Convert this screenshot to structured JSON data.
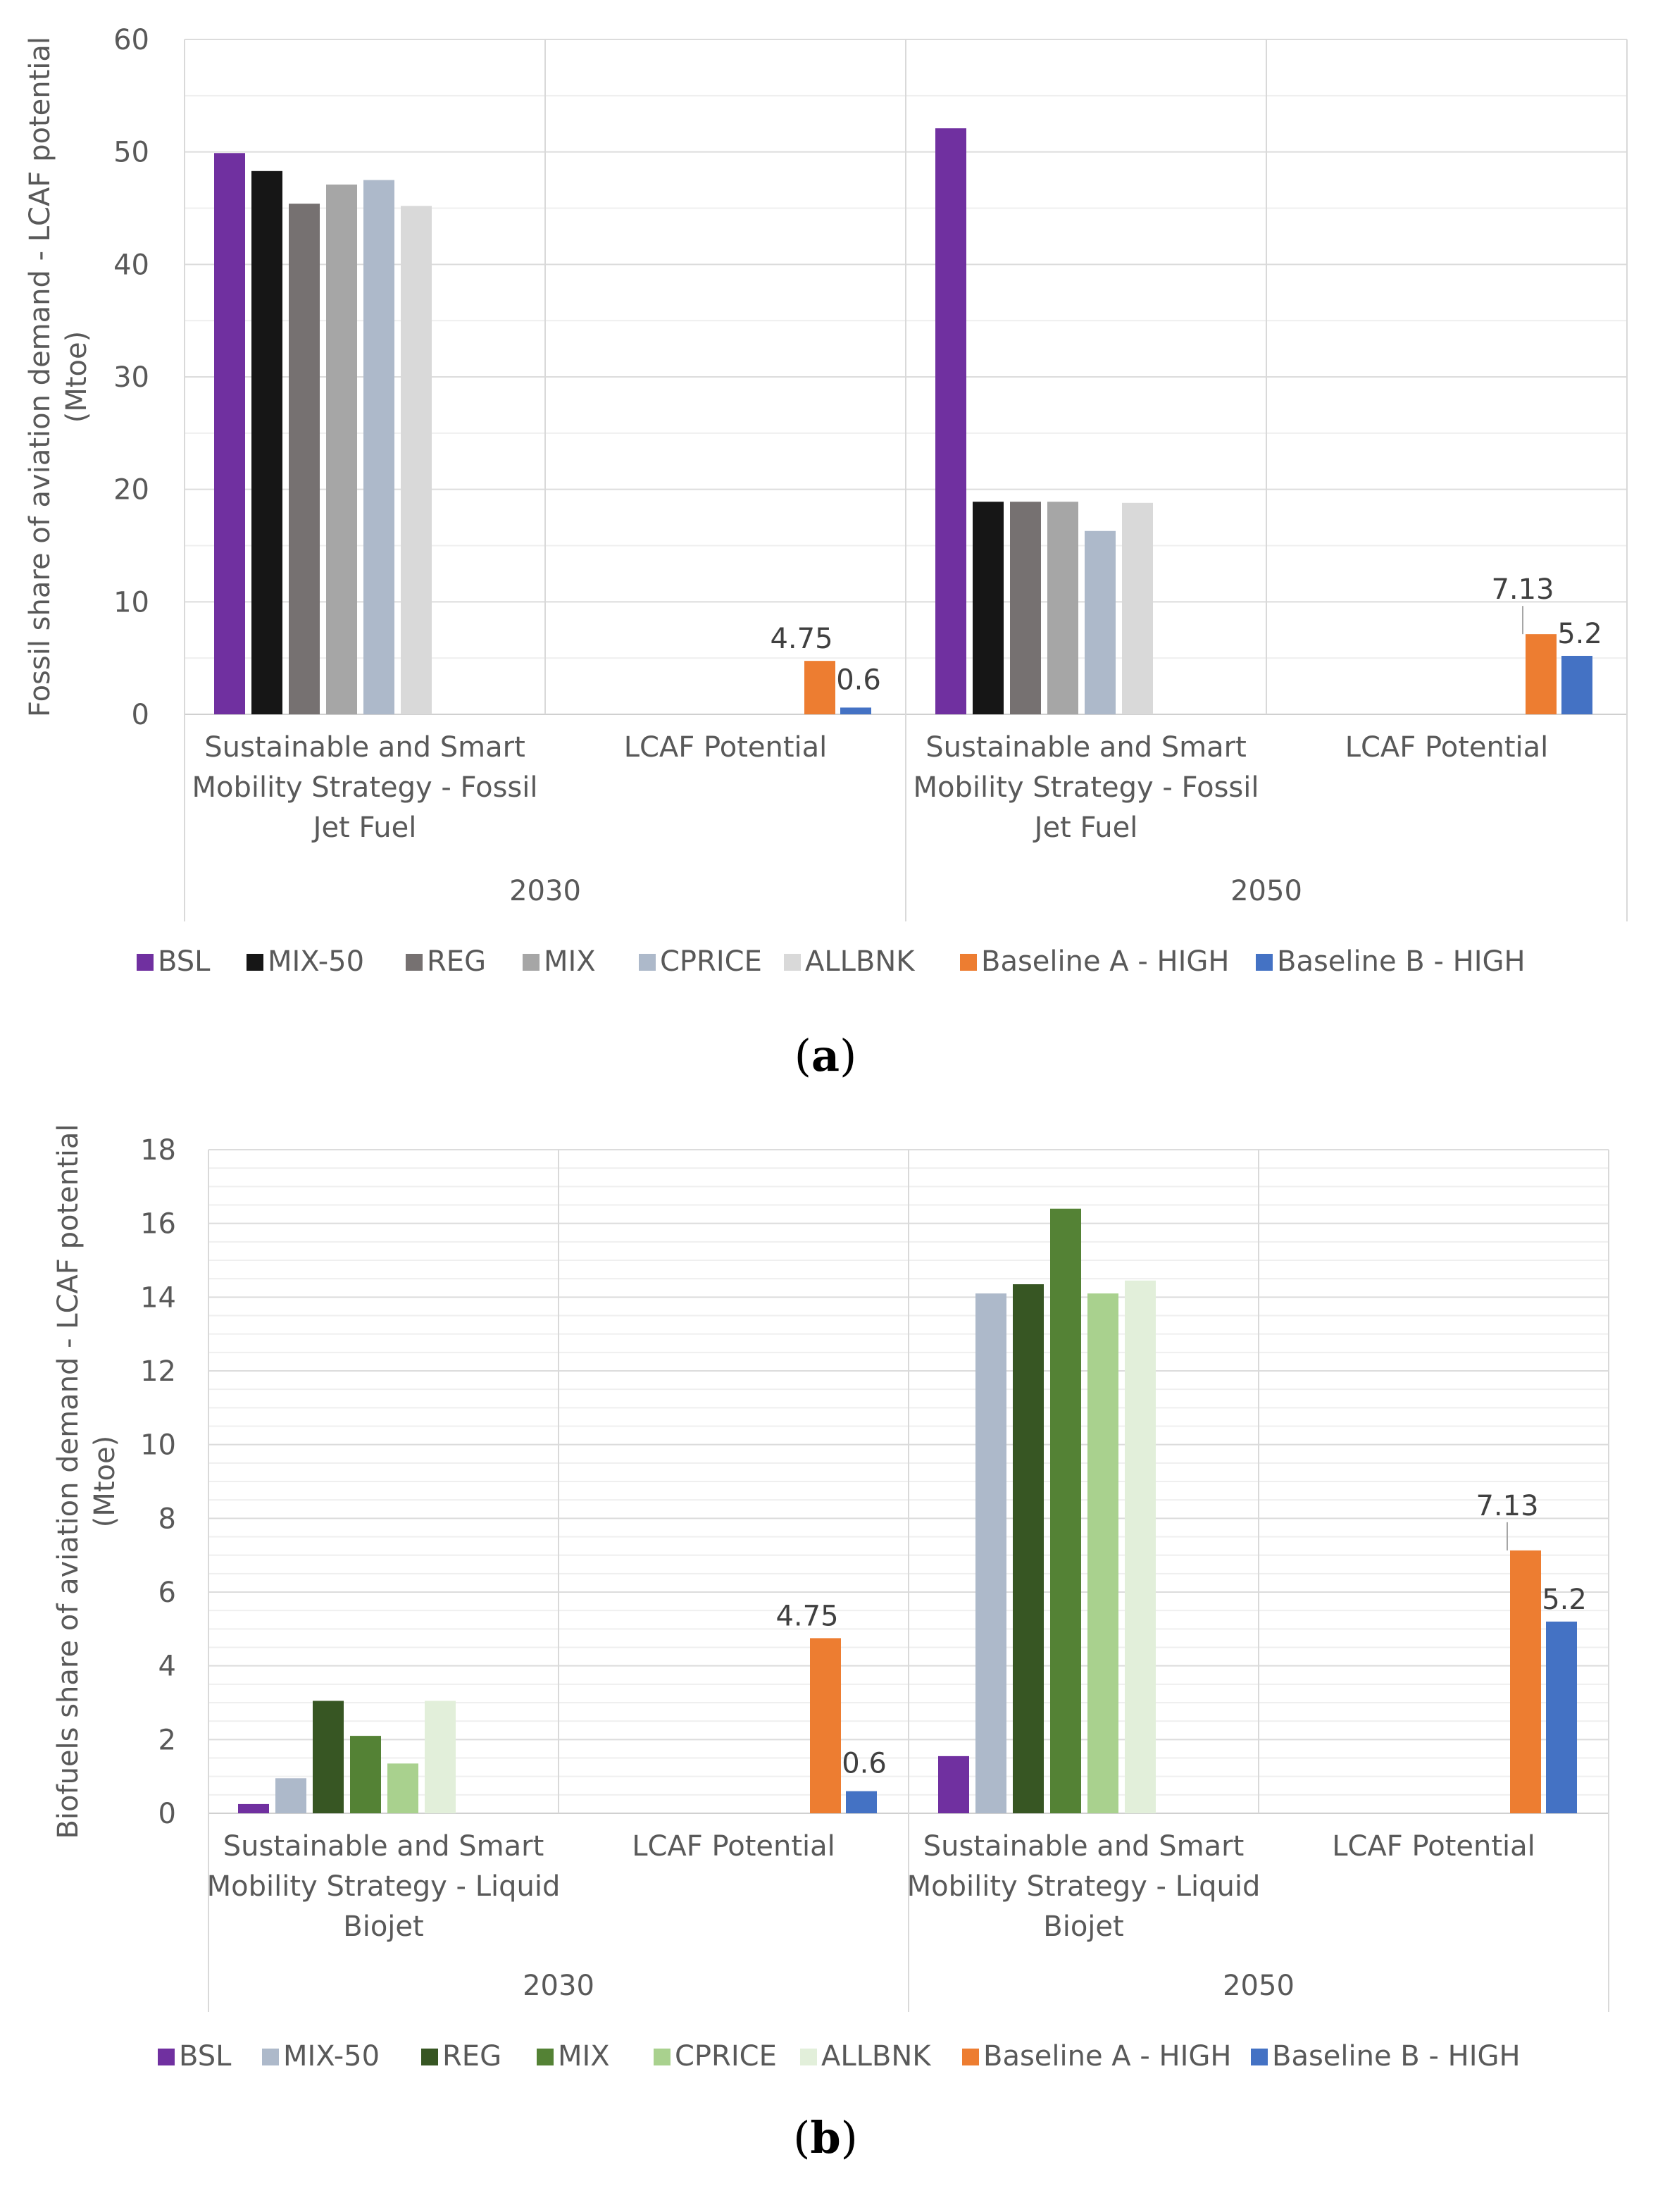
{
  "chart_data": [
    {
      "type": "bar",
      "panel_label": "a",
      "ylabel": "Fossil share of aviation demand - LCAF potential (Mtoe)",
      "ylabel_lines": [
        "Fossil share of aviation demand - LCAF potential",
        "(Mtoe)"
      ],
      "ylim": [
        0,
        60
      ],
      "yticks": [
        0,
        10,
        20,
        30,
        40,
        50,
        60
      ],
      "grid": true,
      "legend_position": "bottom",
      "groups": [
        {
          "year": "2030",
          "categories": [
            {
              "label": "Sustainable and Smart Mobility Strategy - Fossil Jet Fuel",
              "label_lines": [
                "Sustainable and Smart",
                "Mobility Strategy - Fossil",
                "Jet Fuel"
              ],
              "bars": [
                {
                  "series": "BSL",
                  "value": 49.9
                },
                {
                  "series": "MIX-50",
                  "value": 48.3
                },
                {
                  "series": "REG",
                  "value": 45.4
                },
                {
                  "series": "MIX",
                  "value": 47.1
                },
                {
                  "series": "CPRICE",
                  "value": 47.5
                },
                {
                  "series": "ALLBNK",
                  "value": 45.2
                }
              ]
            },
            {
              "label": "LCAF Potential",
              "label_lines": [
                "LCAF Potential"
              ],
              "bars": [
                {
                  "series": "Baseline A - HIGH",
                  "value": 4.75,
                  "data_label": "4.75"
                },
                {
                  "series": "Baseline B - HIGH",
                  "value": 0.6,
                  "data_label": "0.6"
                }
              ]
            }
          ]
        },
        {
          "year": "2050",
          "categories": [
            {
              "label": "Sustainable and Smart Mobility Strategy - Fossil Jet Fuel",
              "label_lines": [
                "Sustainable and Smart",
                "Mobility Strategy - Fossil",
                "Jet Fuel"
              ],
              "bars": [
                {
                  "series": "BSL",
                  "value": 52.1
                },
                {
                  "series": "MIX-50",
                  "value": 18.9
                },
                {
                  "series": "REG",
                  "value": 18.9
                },
                {
                  "series": "MIX",
                  "value": 18.9
                },
                {
                  "series": "CPRICE",
                  "value": 16.3
                },
                {
                  "series": "ALLBNK",
                  "value": 18.8
                }
              ]
            },
            {
              "label": "LCAF Potential",
              "label_lines": [
                "LCAF Potential"
              ],
              "bars": [
                {
                  "series": "Baseline A - HIGH",
                  "value": 7.13,
                  "data_label": "7.13"
                },
                {
                  "series": "Baseline B - HIGH",
                  "value": 5.2,
                  "data_label": "5.2"
                }
              ]
            }
          ]
        }
      ],
      "legend": [
        {
          "name": "BSL",
          "color": "#7030a0"
        },
        {
          "name": "MIX-50",
          "color": "#161616"
        },
        {
          "name": "REG",
          "color": "#767171"
        },
        {
          "name": "MIX",
          "color": "#a6a6a6"
        },
        {
          "name": "CPRICE",
          "color": "#adb9ca"
        },
        {
          "name": "ALLBNK",
          "color": "#d9d9d9"
        },
        {
          "name": "Baseline A - HIGH",
          "color": "#ed7d31"
        },
        {
          "name": "Baseline B - HIGH",
          "color": "#4472c4"
        }
      ]
    },
    {
      "type": "bar",
      "panel_label": "b",
      "ylabel": "Biofuels share of aviation demand - LCAF potential (Mtoe)",
      "ylabel_lines": [
        "Biofuels share of aviation demand - LCAF potential",
        "(Mtoe)"
      ],
      "ylim": [
        0,
        18
      ],
      "yticks": [
        0,
        2,
        4,
        6,
        8,
        10,
        12,
        14,
        16,
        18
      ],
      "grid": true,
      "legend_position": "bottom",
      "groups": [
        {
          "year": "2030",
          "categories": [
            {
              "label": "Sustainable and Smart Mobility Strategy - Liquid Biojet",
              "label_lines": [
                "Sustainable and Smart",
                "Mobility Strategy - Liquid",
                "Biojet"
              ],
              "bars": [
                {
                  "series": "BSL",
                  "value": 0.25
                },
                {
                  "series": "MIX-50",
                  "value": 0.95
                },
                {
                  "series": "REG",
                  "value": 3.05
                },
                {
                  "series": "MIX",
                  "value": 2.1
                },
                {
                  "series": "CPRICE",
                  "value": 1.35
                },
                {
                  "series": "ALLBNK",
                  "value": 3.05
                }
              ]
            },
            {
              "label": "LCAF Potential",
              "label_lines": [
                "LCAF Potential"
              ],
              "bars": [
                {
                  "series": "Baseline A - HIGH",
                  "value": 4.75,
                  "data_label": "4.75"
                },
                {
                  "series": "Baseline B - HIGH",
                  "value": 0.6,
                  "data_label": "0.6"
                }
              ]
            }
          ]
        },
        {
          "year": "2050",
          "categories": [
            {
              "label": "Sustainable and Smart Mobility Strategy - Liquid Biojet",
              "label_lines": [
                "Sustainable and Smart",
                "Mobility Strategy - Liquid",
                "Biojet"
              ],
              "bars": [
                {
                  "series": "BSL",
                  "value": 1.55
                },
                {
                  "series": "MIX-50",
                  "value": 14.1
                },
                {
                  "series": "REG",
                  "value": 14.35
                },
                {
                  "series": "MIX",
                  "value": 16.4
                },
                {
                  "series": "CPRICE",
                  "value": 14.1
                },
                {
                  "series": "ALLBNK",
                  "value": 14.45
                }
              ]
            },
            {
              "label": "LCAF Potential",
              "label_lines": [
                "LCAF Potential"
              ],
              "bars": [
                {
                  "series": "Baseline A - HIGH",
                  "value": 7.13,
                  "data_label": "7.13"
                },
                {
                  "series": "Baseline B - HIGH",
                  "value": 5.2,
                  "data_label": "5.2"
                }
              ]
            }
          ]
        }
      ],
      "legend": [
        {
          "name": "BSL",
          "color": "#7030a0"
        },
        {
          "name": "MIX-50",
          "color": "#adb9ca"
        },
        {
          "name": "REG",
          "color": "#375623"
        },
        {
          "name": "MIX",
          "color": "#548235"
        },
        {
          "name": "CPRICE",
          "color": "#a9d18e"
        },
        {
          "name": "ALLBNK",
          "color": "#e2efda"
        },
        {
          "name": "Baseline A - HIGH",
          "color": "#ed7d31"
        },
        {
          "name": "Baseline B - HIGH",
          "color": "#4472c4"
        }
      ]
    }
  ]
}
